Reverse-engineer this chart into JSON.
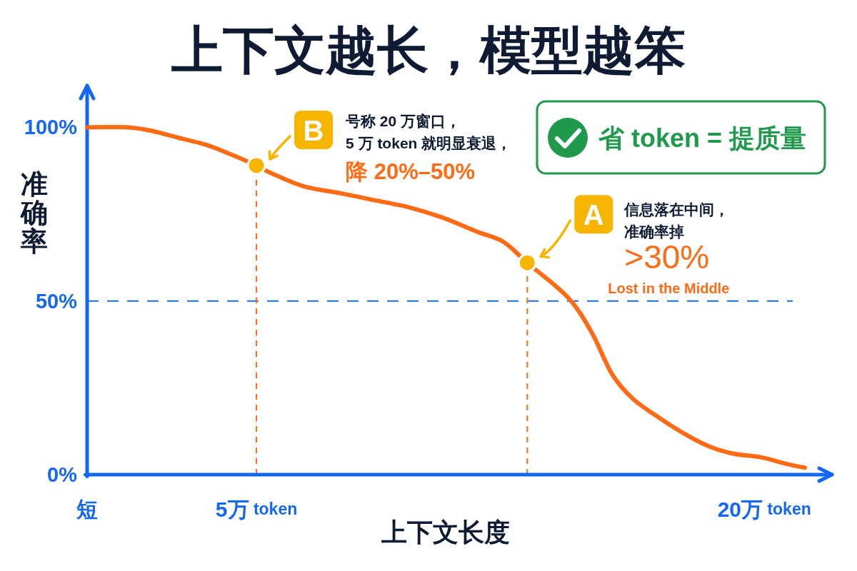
{
  "chart_data": {
    "type": "line",
    "title": "上下文越长，模型越笨",
    "xlabel": "上下文长度",
    "ylabel": "准确率",
    "xlim": [
      0,
      22
    ],
    "ylim": [
      0,
      112
    ],
    "xticks": [
      {
        "value": 0,
        "label": "短"
      },
      {
        "value": 5,
        "label": "5万 token"
      },
      {
        "value": 20,
        "label": "20万 token"
      }
    ],
    "yticks": [
      {
        "value": 0,
        "label": "0%"
      },
      {
        "value": 50,
        "label": "50%"
      },
      {
        "value": 100,
        "label": "100%"
      }
    ],
    "series": [
      {
        "type": "line",
        "color": "#ff6a14",
        "x": [
          0,
          1.2,
          1.9,
          2.7,
          3.5,
          4.3,
          5,
          5.4,
          6.4,
          7.5,
          8.5,
          9.5,
          10.5,
          11.5,
          12.3,
          13,
          14.2,
          14.9,
          15.5,
          16.1,
          16.8,
          17.6,
          18.4,
          19.1,
          19.9,
          20.7,
          21.2
        ],
        "values": [
          100,
          100,
          99,
          97,
          95,
          92,
          89,
          87,
          83,
          81,
          79,
          77,
          74,
          70,
          67,
          61,
          51,
          41,
          29,
          22,
          17,
          12,
          8,
          6,
          5,
          3,
          2
        ]
      },
      {
        "type": "scatter",
        "color": "#f7b500",
        "marker": "circle",
        "x": [
          5,
          13
        ],
        "values": [
          89,
          61
        ]
      }
    ],
    "ref_lines": [
      {
        "axis": "y",
        "value": 50,
        "color": "#1a6cf0",
        "line_style": "dashed"
      },
      {
        "axis": "x",
        "value": 5,
        "color": "#ff6a14",
        "line_style": "dashed"
      },
      {
        "axis": "x",
        "value": 13,
        "color": "#ff6a14",
        "line_style": "dashed"
      }
    ],
    "annotations": [
      {
        "text": "B",
        "x": 5,
        "y": 89
      },
      "号称 20 万窗口，",
      "5 万 token 就明显衰退，",
      "降 20%–50%",
      {
        "text": "A",
        "x": 13,
        "y": 61
      },
      "信息落在中间，",
      "准确率掉",
      ">30%",
      "Lost in the Middle",
      "省 token = 提质量"
    ]
  }
}
